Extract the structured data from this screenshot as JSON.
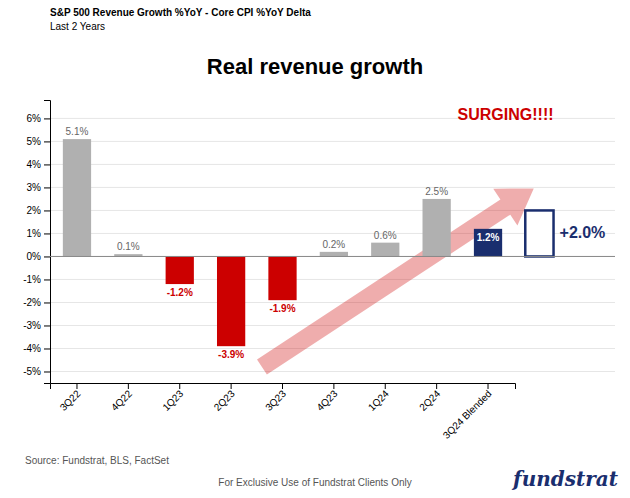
{
  "chart_data": {
    "type": "bar",
    "title": "Real revenue growth",
    "subtitle": [
      "S&P 500 Revenue Growth %YoY - Core CPI %YoY Delta",
      "Last 2 Years"
    ],
    "categories": [
      "3Q22",
      "4Q22",
      "1Q23",
      "2Q23",
      "3Q23",
      "4Q23",
      "1Q24",
      "2Q24",
      "3Q24 Blended"
    ],
    "values": [
      5.1,
      0.1,
      -1.2,
      -3.9,
      -1.9,
      0.2,
      0.6,
      2.5,
      1.2
    ],
    "value_labels": [
      "5.1%",
      "0.1%",
      "-1.2%",
      "-3.9%",
      "-1.9%",
      "0.2%",
      "0.6%",
      "2.5%",
      "1.2%"
    ],
    "colors": [
      "#b0b0b0",
      "#b0b0b0",
      "#cc0000",
      "#cc0000",
      "#cc0000",
      "#b0b0b0",
      "#b0b0b0",
      "#b0b0b0",
      "#1a2e6e"
    ],
    "data_labels": true,
    "ylim": [
      -5.5,
      6.8
    ],
    "yticks": [
      {
        "value": -5,
        "label": "-5%"
      },
      {
        "value": -4,
        "label": "-4%"
      },
      {
        "value": -3,
        "label": "-3%"
      },
      {
        "value": -2,
        "label": "-2%"
      },
      {
        "value": -1,
        "label": "-1%"
      },
      {
        "value": 0,
        "label": "0%"
      },
      {
        "value": 1,
        "label": "1%"
      },
      {
        "value": 2,
        "label": "2%"
      },
      {
        "value": 3,
        "label": "3%"
      },
      {
        "value": 4,
        "label": "4%"
      },
      {
        "value": 5,
        "label": "5%"
      },
      {
        "value": 6,
        "label": "6%"
      }
    ],
    "grid": true,
    "annotations": [
      {
        "text": "SURGING!!!!",
        "color": "#cc0000"
      },
      {
        "text": "+2.0%",
        "value": 2.0,
        "color": "#1a2e6e"
      },
      {
        "text": "Source: Fundstrat, BLS, FactSet"
      },
      {
        "text": "For Exclusive Use of Fundstrat Clients Only"
      },
      {
        "text": "fundstrat",
        "color": "#1a2e6e"
      }
    ]
  }
}
